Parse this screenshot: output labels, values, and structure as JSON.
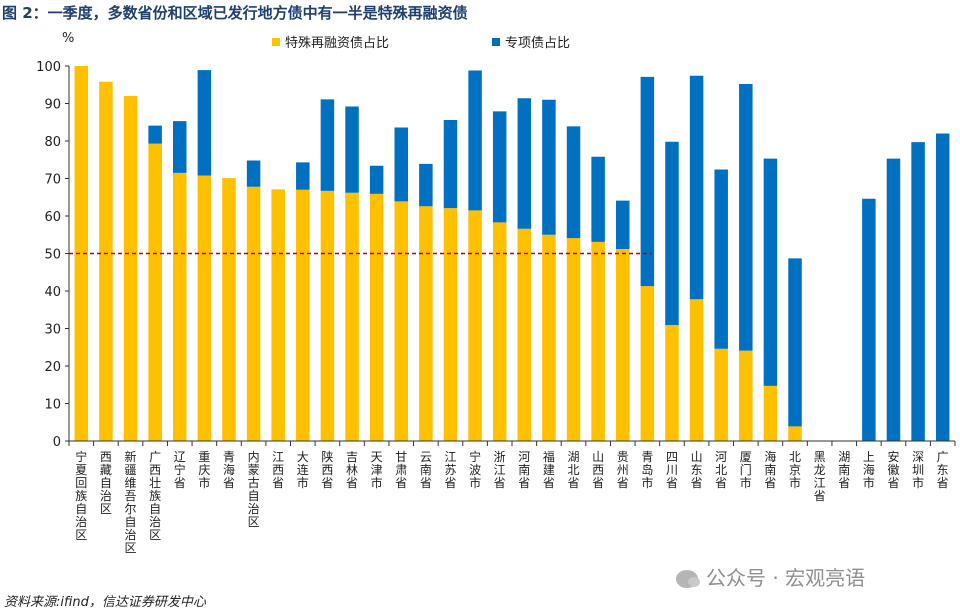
{
  "title": "图 2：一季度，多数省份和区域已发行地方债中有一半是特殊再融资债",
  "source": "资料来源:ifind，信达证券研发中心",
  "watermark": "公众号 · 宏观亮语",
  "chart_data": {
    "type": "bar",
    "stacked": true,
    "unit": "%",
    "ylim": [
      0,
      100
    ],
    "yticks": [
      0,
      10,
      20,
      30,
      40,
      50,
      60,
      70,
      80,
      90,
      100
    ],
    "reference_line": 50,
    "legend_placement": "top",
    "categories": [
      "宁夏回族自治区",
      "西藏自治区",
      "新疆维吾尔自治区",
      "广西壮族自治区",
      "辽宁省",
      "重庆市",
      "青海省",
      "内蒙古自治区",
      "江西省",
      "大连市",
      "陕西省",
      "吉林省",
      "天津市",
      "甘肃省",
      "云南省",
      "江苏省",
      "宁波市",
      "浙江省",
      "河南省",
      "福建省",
      "湖北省",
      "山西省",
      "贵州省",
      "青岛市",
      "四川省",
      "山东省",
      "河北省",
      "厦门市",
      "海南省",
      "北京市",
      "黑龙江省",
      "湖南省",
      "上海市",
      "安徽省",
      "深圳市",
      "广东省"
    ],
    "series": [
      {
        "name": "特殊再融资债占比",
        "color": "#FFC000",
        "values": [
          100,
          95.8,
          92,
          79.3,
          71.5,
          70.8,
          70.1,
          67.8,
          67.1,
          67,
          66.7,
          66.2,
          65.9,
          63.9,
          62.6,
          62.1,
          61.5,
          58.3,
          56.6,
          55,
          54.1,
          53.1,
          51.2,
          41.3,
          30.9,
          37.8,
          24.6,
          24.1,
          14.7,
          3.9,
          0,
          0,
          0,
          0,
          0,
          0
        ]
      },
      {
        "name": "专项债占比",
        "color": "#0070C0",
        "values": [
          0,
          0,
          0,
          4.8,
          13.8,
          28.1,
          0,
          7,
          0,
          7.3,
          24.4,
          23,
          7.5,
          19.7,
          11.3,
          23.5,
          37.3,
          29.6,
          34.8,
          36,
          29.8,
          22.7,
          12.9,
          55.8,
          48.9,
          59.6,
          47.8,
          71.1,
          60.6,
          44.8,
          0,
          0,
          64.6,
          75.3,
          79.7,
          82
        ]
      }
    ]
  }
}
